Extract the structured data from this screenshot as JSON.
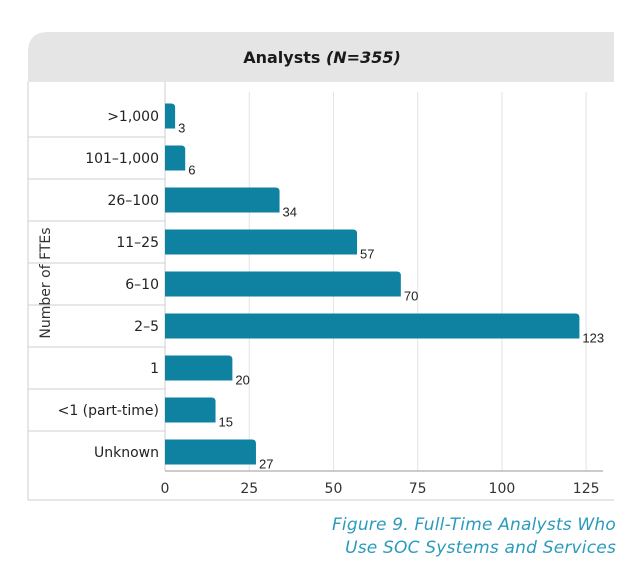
{
  "chart_data": {
    "type": "bar",
    "orientation": "horizontal",
    "title_main": "Analysts",
    "title_note": "(N=355)",
    "ylabel": "Number of FTEs",
    "xlabel": "",
    "categories": [
      ">1,000",
      "101–1,000",
      "26–100",
      "11–25",
      "6–10",
      "2–5",
      "1",
      "<1 (part-time)",
      "Unknown"
    ],
    "values": [
      3,
      6,
      34,
      57,
      70,
      123,
      20,
      15,
      27
    ],
    "data_labels": [
      "3",
      "6",
      "34",
      "57",
      "70",
      "123",
      "20",
      "15",
      "27"
    ],
    "xlim": [
      0,
      130
    ],
    "xticks": [
      0,
      25,
      50,
      75,
      100,
      125
    ],
    "xtick_labels": [
      "0",
      "25",
      "50",
      "75",
      "100",
      "125"
    ],
    "grid": "vertical",
    "bar_color": "#0e82a0",
    "header_bg": "#e5e5e5"
  },
  "caption": {
    "line1": "Figure 9. Full-Time Analysts Who",
    "line2": "Use SOC Systems and Services"
  }
}
